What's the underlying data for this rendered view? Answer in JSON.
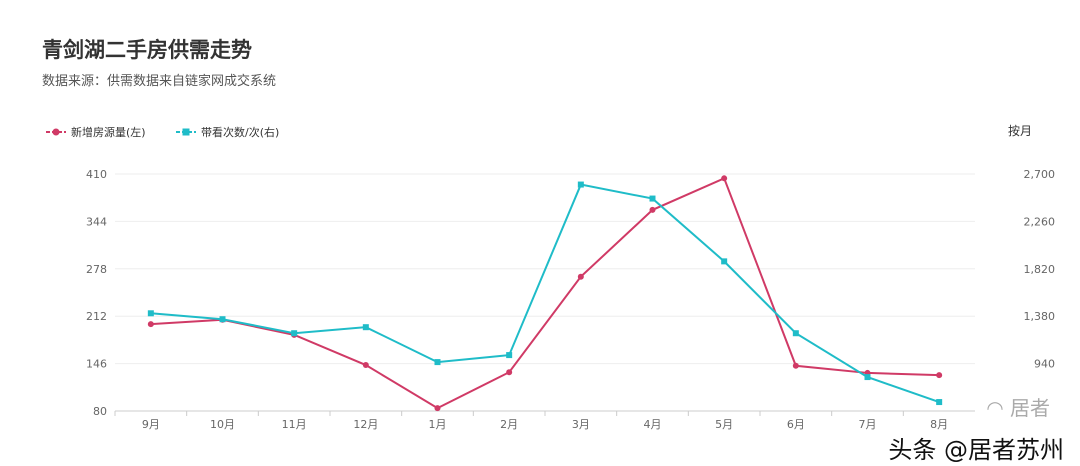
{
  "header": {
    "title": "青剑湖二手房供需走势",
    "subtitle": "数据来源：供需数据来自链家网成交系统",
    "unit": "按月"
  },
  "watermark": {
    "text": "头条 @居者苏州",
    "logo_text": "居者"
  },
  "chart_data": {
    "type": "line",
    "title": "青剑湖二手房供需走势",
    "categories": [
      "9月",
      "10月",
      "11月",
      "12月",
      "1月",
      "2月",
      "3月",
      "4月",
      "5月",
      "6月",
      "7月",
      "8月"
    ],
    "series": [
      {
        "name": "新增房源量(左)",
        "axis": "left",
        "color": "#d03a66",
        "marker": "circle",
        "values": [
          201,
          207,
          186,
          144,
          84,
          134,
          267,
          360,
          404,
          143,
          133,
          130
        ]
      },
      {
        "name": "带看次数/次(右)",
        "axis": "right",
        "color": "#1fbcc8",
        "marker": "square",
        "values": [
          1407,
          1352,
          1222,
          1278,
          954,
          1019,
          2602,
          2472,
          1889,
          1222,
          815,
          583
        ]
      }
    ],
    "yleft": {
      "ticks": [
        "80",
        "146",
        "212",
        "278",
        "344",
        "410"
      ],
      "range": [
        80,
        410
      ]
    },
    "yright": {
      "ticks": [
        "940",
        "1,380",
        "1,820",
        "2,260",
        "2,700"
      ],
      "range": [
        500,
        2700
      ]
    },
    "grid": true,
    "legend": "top-left"
  }
}
